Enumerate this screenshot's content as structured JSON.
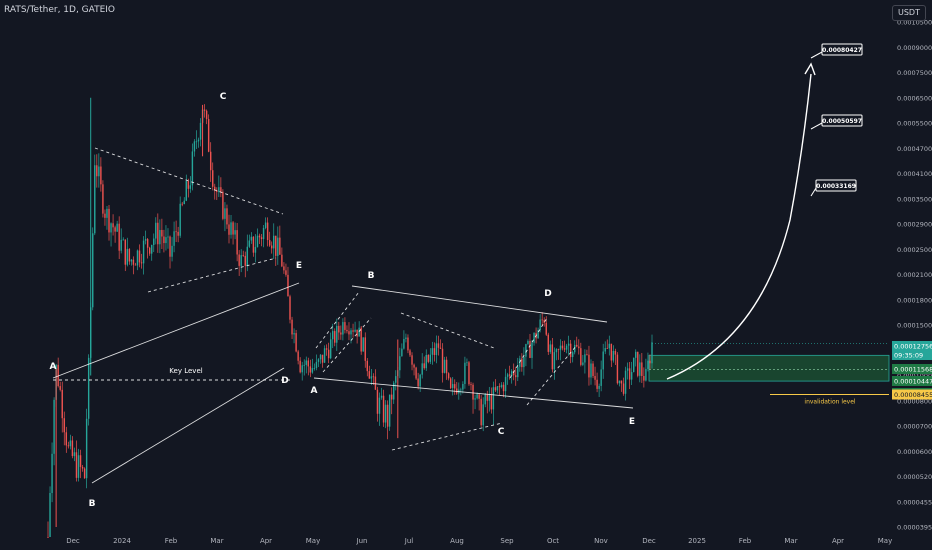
{
  "symbol_title": "RATS/Tether, 1D, GATEIO",
  "currency_button": "USDT",
  "colors": {
    "background": "#131722",
    "up": "#26a69a",
    "down": "#ef5350",
    "pattern": "#ffffff",
    "zone_fill": "#1f6b3a",
    "zone_border": "#26a69a",
    "invalidation": "#f7c948"
  },
  "chart_data": {
    "type": "candlestick",
    "scale": "log",
    "grid": false,
    "x_ticks": [
      "Dec",
      "2024",
      "Feb",
      "Mar",
      "Apr",
      "May",
      "Jun",
      "Jul",
      "Aug",
      "Sep",
      "Oct",
      "Nov",
      "Dec",
      "2025",
      "Feb",
      "Mar",
      "Apr",
      "May"
    ],
    "y_ticks": [
      "0.00105000",
      "0.00090000",
      "0.00075000",
      "0.00065000",
      "0.00055000",
      "0.00047000",
      "0.00041000",
      "0.00035000",
      "0.00029000",
      "0.00025000",
      "0.00021000",
      "0.00018000",
      "0.00015000",
      "0.00012000",
      "0.00010000",
      "0.00008000",
      "0.00007000",
      "0.00006000",
      "0.00005200",
      "0.00004550",
      "0.00003950"
    ],
    "price_tags": [
      {
        "label": "0.00012756",
        "value": 0.00012756,
        "kind": "last"
      },
      {
        "label": "09:35:09",
        "value": 0.0001235,
        "kind": "countdown"
      },
      {
        "label": "0.00011568",
        "value": 0.00011568,
        "kind": "zone"
      },
      {
        "label": "0.00010447",
        "value": 0.00010447,
        "kind": "zone"
      },
      {
        "label": "0.00009517",
        "value": 9.517e-05,
        "kind": "zone"
      },
      {
        "label": "0.00008455",
        "value": 8.455e-05,
        "kind": "invalidation"
      }
    ],
    "target_labels": [
      "0.00080427",
      "0.00050597",
      "0.00033169"
    ],
    "wave_labels": [
      "A",
      "B",
      "C",
      "D",
      "E",
      "A",
      "B",
      "C",
      "D",
      "E"
    ],
    "key_level_label": "Key Level",
    "key_level_value": 0.0001045,
    "invalidation_label": "invalidation level",
    "invalidation_value": 8.455e-05,
    "buy_zone": [
      9.517e-05,
      0.00011568
    ],
    "candles_anchor": [
      [
        0,
        3.9e-05
      ],
      [
        4,
        0.000105
      ],
      [
        10,
        6e-05
      ],
      [
        18,
        5.2e-05
      ],
      [
        20,
        0.000105
      ],
      [
        23,
        0.00045
      ],
      [
        28,
        0.00032
      ],
      [
        40,
        0.00023
      ],
      [
        55,
        0.00028
      ],
      [
        60,
        0.00024
      ],
      [
        70,
        0.0004
      ],
      [
        76,
        0.00062
      ],
      [
        82,
        0.00038
      ],
      [
        95,
        0.00023
      ],
      [
        108,
        0.00029
      ],
      [
        115,
        0.00023
      ],
      [
        120,
        0.00015
      ],
      [
        124,
        0.00011
      ],
      [
        132,
        0.000105
      ],
      [
        146,
        0.000155
      ],
      [
        152,
        0.000145
      ],
      [
        158,
        0.000105
      ],
      [
        162,
        8e-05
      ],
      [
        167,
        7.3e-05
      ],
      [
        176,
        0.000135
      ],
      [
        182,
        9.8e-05
      ],
      [
        192,
        0.000125
      ],
      [
        198,
        8.5e-05
      ],
      [
        206,
        0.000105
      ],
      [
        212,
        7.5e-05
      ],
      [
        220,
        8.5e-05
      ],
      [
        228,
        0.000102
      ],
      [
        236,
        0.00012
      ],
      [
        244,
        0.00016
      ],
      [
        248,
        0.000105
      ],
      [
        254,
        0.00013
      ],
      [
        262,
        0.000118
      ],
      [
        270,
        9.5e-05
      ],
      [
        276,
        0.000128
      ],
      [
        282,
        9e-05
      ],
      [
        289,
        0.00011
      ],
      [
        294,
        9.75e-05
      ],
      [
        297,
        0.00012756
      ]
    ]
  }
}
